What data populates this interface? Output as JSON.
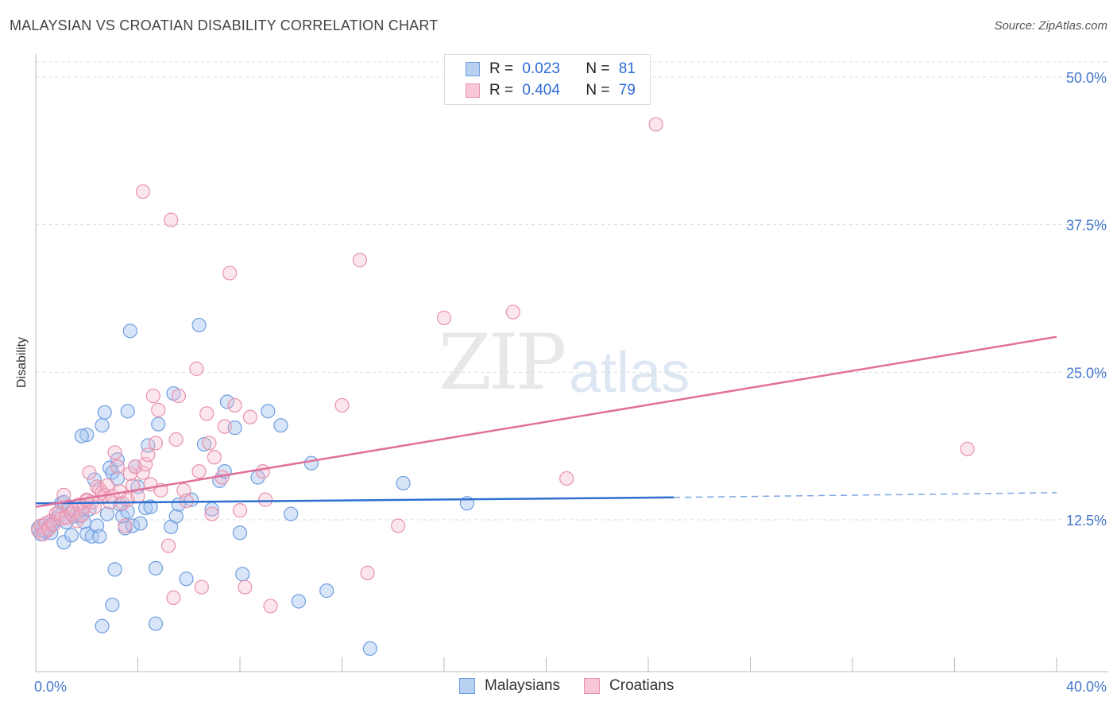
{
  "title": "MALAYSIAN VS CROATIAN DISABILITY CORRELATION CHART",
  "source": "Source: ZipAtlas.com",
  "watermark": {
    "zip": "ZIP",
    "atlas": "atlas"
  },
  "legend": {
    "rows": [
      {
        "r_label": "R =",
        "r_value": "0.023",
        "n_label": "N =",
        "n_value": "81"
      },
      {
        "r_label": "R =",
        "r_value": "0.404",
        "n_label": "N =",
        "n_value": "79"
      }
    ],
    "bottom": [
      "Malaysians",
      "Croatians"
    ]
  },
  "colors": {
    "blue": "#2f6fd0",
    "blue_fill": "#a9c6f0",
    "pink": "#e0709a",
    "pink_fill": "#f5b8cb",
    "grid": "#dddddd",
    "tick": "#4477cc"
  },
  "chart_data": {
    "type": "scatter",
    "title": "MALAYSIAN VS CROATIAN DISABILITY CORRELATION CHART",
    "xlabel": "",
    "ylabel": "Disability",
    "xlim": [
      0,
      40
    ],
    "ylim": [
      0,
      52
    ],
    "x_tick_labels": [
      "0.0%",
      "40.0%"
    ],
    "y_ticks": [
      12.5,
      25.0,
      37.5,
      50.0
    ],
    "y_tick_labels": [
      "12.5%",
      "25.0%",
      "37.5%",
      "50.0%"
    ],
    "series": [
      {
        "name": "Malaysians",
        "color": "#2f6fd0",
        "trend": {
          "x0": 0,
          "y0": 13.9,
          "x1": 25,
          "y1": 14.4,
          "dash_to_x": 40,
          "dash_to_y": 14.8
        },
        "points": [
          [
            0.1,
            11.8
          ],
          [
            0.2,
            11.3
          ],
          [
            0.3,
            12.0
          ],
          [
            0.4,
            11.5
          ],
          [
            0.5,
            11.9
          ],
          [
            0.6,
            12.1
          ],
          [
            0.7,
            12.3
          ],
          [
            0.8,
            12.6
          ],
          [
            0.9,
            12.8
          ],
          [
            1.0,
            13.9
          ],
          [
            1.1,
            10.6
          ],
          [
            1.2,
            12.3
          ],
          [
            1.3,
            13.6
          ],
          [
            1.4,
            11.2
          ],
          [
            1.5,
            12.8
          ],
          [
            1.6,
            13.0
          ],
          [
            1.7,
            12.8
          ],
          [
            1.8,
            12.9
          ],
          [
            1.9,
            12.3
          ],
          [
            2.0,
            11.3
          ],
          [
            2.1,
            13.4
          ],
          [
            2.2,
            11.1
          ],
          [
            2.3,
            15.9
          ],
          [
            2.4,
            12.0
          ],
          [
            2.5,
            11.1
          ],
          [
            2.6,
            20.5
          ],
          [
            2.7,
            21.6
          ],
          [
            2.8,
            13.0
          ],
          [
            2.9,
            16.9
          ],
          [
            3.0,
            16.5
          ],
          [
            3.1,
            8.3
          ],
          [
            3.2,
            16.0
          ],
          [
            3.3,
            13.8
          ],
          [
            3.4,
            12.8
          ],
          [
            3.5,
            11.8
          ],
          [
            3.6,
            21.7
          ],
          [
            3.7,
            28.5
          ],
          [
            3.8,
            12.0
          ],
          [
            3.9,
            17.0
          ],
          [
            4.0,
            15.3
          ],
          [
            4.1,
            12.2
          ],
          [
            4.3,
            13.5
          ],
          [
            4.4,
            18.8
          ],
          [
            4.5,
            13.6
          ],
          [
            4.7,
            8.4
          ],
          [
            4.8,
            20.6
          ],
          [
            5.3,
            11.9
          ],
          [
            5.4,
            23.2
          ],
          [
            5.5,
            12.8
          ],
          [
            5.6,
            13.8
          ],
          [
            5.9,
            7.5
          ],
          [
            6.1,
            14.2
          ],
          [
            6.4,
            29.0
          ],
          [
            6.6,
            18.9
          ],
          [
            6.9,
            13.4
          ],
          [
            7.2,
            15.8
          ],
          [
            7.4,
            16.6
          ],
          [
            7.5,
            22.5
          ],
          [
            7.8,
            20.3
          ],
          [
            8.0,
            11.4
          ],
          [
            8.1,
            7.9
          ],
          [
            8.7,
            16.1
          ],
          [
            9.1,
            21.7
          ],
          [
            9.6,
            20.5
          ],
          [
            10.0,
            13.0
          ],
          [
            10.3,
            5.6
          ],
          [
            10.8,
            17.3
          ],
          [
            11.4,
            6.5
          ],
          [
            13.1,
            1.6
          ],
          [
            14.4,
            15.6
          ],
          [
            16.9,
            13.9
          ],
          [
            3.0,
            5.3
          ],
          [
            2.6,
            3.5
          ],
          [
            4.7,
            3.7
          ],
          [
            2.0,
            19.7
          ],
          [
            3.2,
            17.6
          ],
          [
            1.1,
            14.0
          ],
          [
            1.8,
            19.6
          ],
          [
            0.3,
            11.6
          ],
          [
            0.6,
            11.4
          ],
          [
            3.6,
            13.2
          ]
        ]
      },
      {
        "name": "Croatians",
        "color": "#e0709a",
        "trend": {
          "x0": 0,
          "y0": 13.6,
          "x1": 40,
          "y1": 28.0
        },
        "points": [
          [
            0.1,
            11.6
          ],
          [
            0.2,
            12.0
          ],
          [
            0.3,
            11.3
          ],
          [
            0.4,
            12.2
          ],
          [
            0.5,
            11.7
          ],
          [
            0.6,
            12.4
          ],
          [
            0.7,
            12.1
          ],
          [
            0.8,
            13.0
          ],
          [
            0.9,
            13.1
          ],
          [
            1.0,
            12.6
          ],
          [
            1.1,
            14.6
          ],
          [
            1.2,
            12.7
          ],
          [
            1.3,
            13.6
          ],
          [
            1.4,
            13.0
          ],
          [
            1.5,
            13.3
          ],
          [
            1.6,
            12.4
          ],
          [
            1.7,
            13.8
          ],
          [
            1.8,
            12.9
          ],
          [
            1.9,
            13.6
          ],
          [
            2.0,
            14.1
          ],
          [
            2.1,
            16.5
          ],
          [
            2.2,
            14.0
          ],
          [
            2.3,
            13.6
          ],
          [
            2.4,
            15.3
          ],
          [
            2.5,
            15.1
          ],
          [
            2.6,
            14.8
          ],
          [
            2.7,
            14.6
          ],
          [
            2.8,
            15.4
          ],
          [
            2.9,
            14.0
          ],
          [
            3.0,
            14.5
          ],
          [
            3.1,
            18.2
          ],
          [
            3.2,
            17.0
          ],
          [
            3.3,
            14.9
          ],
          [
            3.4,
            13.9
          ],
          [
            3.5,
            12.0
          ],
          [
            3.6,
            14.2
          ],
          [
            3.7,
            16.4
          ],
          [
            3.8,
            15.4
          ],
          [
            3.9,
            17.0
          ],
          [
            4.0,
            14.5
          ],
          [
            4.2,
            16.5
          ],
          [
            4.3,
            17.2
          ],
          [
            4.4,
            18.0
          ],
          [
            4.5,
            15.5
          ],
          [
            4.6,
            23.0
          ],
          [
            4.7,
            19.0
          ],
          [
            4.8,
            21.8
          ],
          [
            4.9,
            15.0
          ],
          [
            5.2,
            10.3
          ],
          [
            5.4,
            5.9
          ],
          [
            5.5,
            19.3
          ],
          [
            5.6,
            23.0
          ],
          [
            5.8,
            15.0
          ],
          [
            5.9,
            14.1
          ],
          [
            6.3,
            25.3
          ],
          [
            6.4,
            16.6
          ],
          [
            6.5,
            6.8
          ],
          [
            6.7,
            21.5
          ],
          [
            6.8,
            19.0
          ],
          [
            6.9,
            13.0
          ],
          [
            7.0,
            17.8
          ],
          [
            7.3,
            16.1
          ],
          [
            7.4,
            20.4
          ],
          [
            7.6,
            33.4
          ],
          [
            7.8,
            22.2
          ],
          [
            8.0,
            13.3
          ],
          [
            8.2,
            6.8
          ],
          [
            8.4,
            21.2
          ],
          [
            8.9,
            16.6
          ],
          [
            9.0,
            14.2
          ],
          [
            9.2,
            5.2
          ],
          [
            12.0,
            22.2
          ],
          [
            12.7,
            34.5
          ],
          [
            13.0,
            8.0
          ],
          [
            14.2,
            12.0
          ],
          [
            16.0,
            29.6
          ],
          [
            18.7,
            30.1
          ],
          [
            20.8,
            16.0
          ],
          [
            24.3,
            46.0
          ]
        ]
      }
    ],
    "extra_pink_points": [
      [
        4.2,
        40.3
      ],
      [
        5.3,
        37.9
      ],
      [
        36.5,
        18.5
      ],
      [
        2.0,
        14.2
      ]
    ]
  }
}
